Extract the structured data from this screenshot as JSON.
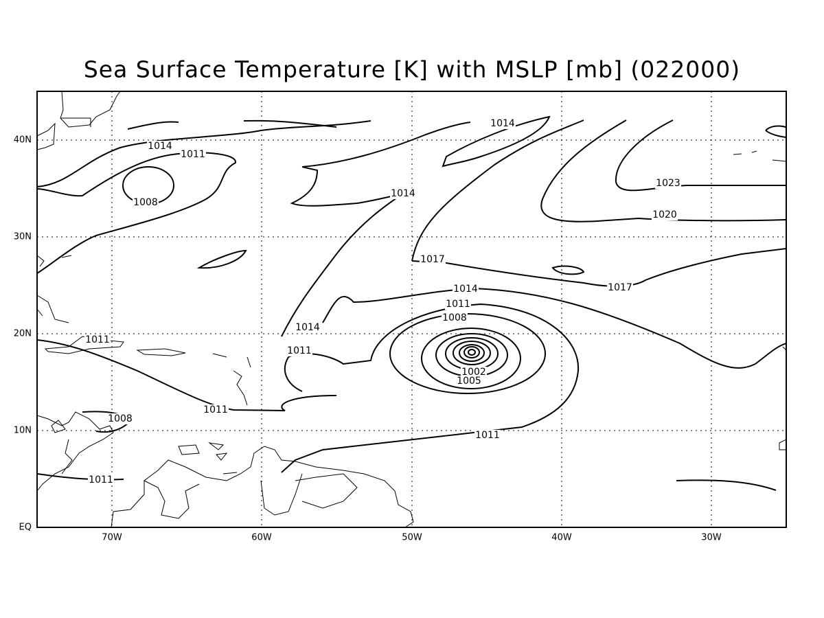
{
  "title": "Sea Surface Temperature [K] with MSLP [mb] (022000)",
  "x_labels": [
    "70W",
    "60W",
    "50W",
    "40W",
    "30W"
  ],
  "y_labels": [
    "EQ",
    "10N",
    "20N",
    "30N",
    "40N"
  ],
  "contour_labels": [
    "1014",
    "1014",
    "1011",
    "1008",
    "1014",
    "1017",
    "1014",
    "1011",
    "1008",
    "1014",
    "1011",
    "1011",
    "1002",
    "1005",
    "1011",
    "1008",
    "1011",
    "1011",
    "1023",
    "1020",
    "1017"
  ]
}
